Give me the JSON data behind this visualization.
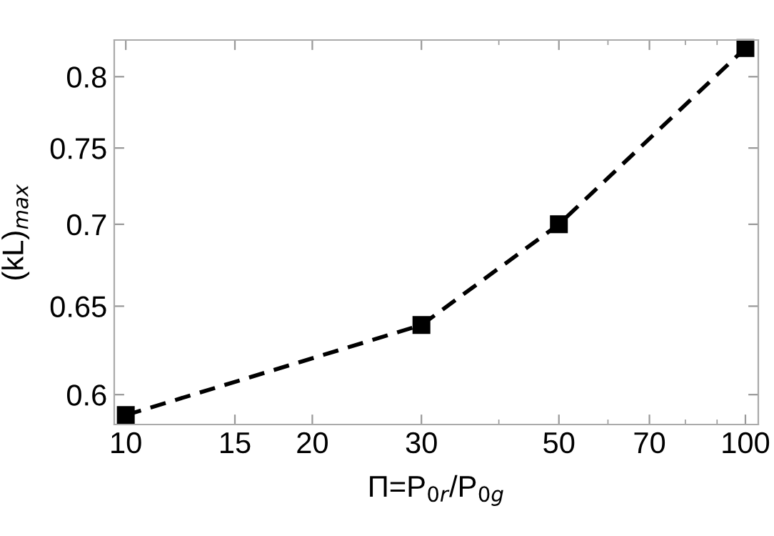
{
  "chart_data": {
    "type": "line",
    "xlabel": "Π=P$_{0r}$/P$_{0g}$",
    "ylabel": "(kL)$_{max}$",
    "x": [
      10,
      30,
      50,
      100
    ],
    "series": [
      {
        "color": "#000000",
        "values": [
          0.589,
          0.639,
          0.7,
          0.821
        ]
      }
    ],
    "log": "xy",
    "marker": "square",
    "line_style": "dashed",
    "grid": false,
    "legend": false,
    "xlim": [
      9.58,
      104.9
    ],
    "ylim": [
      0.584,
      0.827
    ],
    "xticks": [
      10,
      15,
      20,
      30,
      50,
      70,
      100
    ],
    "yticks": [
      0.6,
      0.65,
      0.7,
      0.75,
      0.8
    ]
  }
}
